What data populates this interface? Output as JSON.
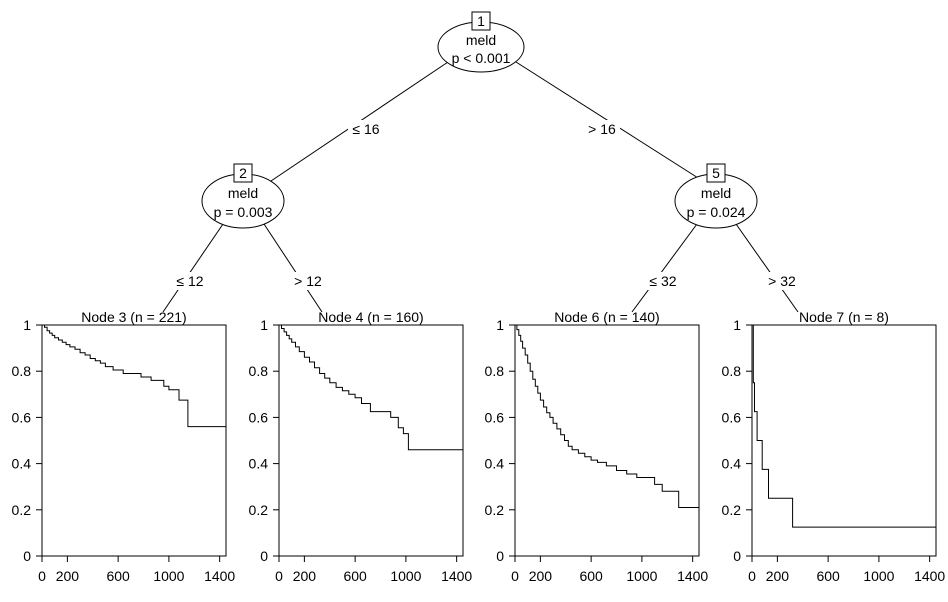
{
  "tree": {
    "inner_nodes": [
      {
        "id": "1",
        "variable": "meld",
        "pvalue": "p < 0.001"
      },
      {
        "id": "2",
        "variable": "meld",
        "pvalue": "p = 0.003"
      },
      {
        "id": "5",
        "variable": "meld",
        "pvalue": "p = 0.024"
      }
    ],
    "edges": [
      {
        "label": "≤ 16"
      },
      {
        "label": "> 16"
      },
      {
        "label": "≤ 12"
      },
      {
        "label": "> 12"
      },
      {
        "label": "≤ 32"
      },
      {
        "label": "> 32"
      }
    ]
  },
  "chart_data": [
    {
      "type": "line",
      "title": "Node 3 (n = 221)",
      "xlim": [
        0,
        1450
      ],
      "ylim": [
        0,
        1
      ],
      "x_ticks": [
        0,
        200,
        600,
        1000,
        1400
      ],
      "y_ticks": [
        0,
        0.2,
        0.4,
        0.6,
        0.8,
        1
      ],
      "x": [
        0,
        20,
        40,
        60,
        80,
        100,
        130,
        160,
        190,
        220,
        260,
        300,
        340,
        380,
        420,
        460,
        500,
        560,
        640,
        720,
        780,
        860,
        900,
        960,
        1000,
        1080,
        1150,
        1450
      ],
      "y": [
        1,
        0.99,
        0.975,
        0.965,
        0.955,
        0.945,
        0.935,
        0.925,
        0.915,
        0.905,
        0.895,
        0.88,
        0.87,
        0.855,
        0.845,
        0.835,
        0.82,
        0.805,
        0.79,
        0.79,
        0.775,
        0.76,
        0.76,
        0.735,
        0.72,
        0.675,
        0.56,
        0.56
      ]
    },
    {
      "type": "line",
      "title": "Node 4 (n = 160)",
      "xlim": [
        0,
        1450
      ],
      "ylim": [
        0,
        1
      ],
      "x_ticks": [
        0,
        200,
        600,
        1000,
        1400
      ],
      "y_ticks": [
        0,
        0.2,
        0.4,
        0.6,
        0.8,
        1
      ],
      "x": [
        0,
        20,
        40,
        60,
        80,
        100,
        130,
        160,
        200,
        240,
        280,
        320,
        360,
        400,
        450,
        500,
        550,
        600,
        650,
        720,
        800,
        880,
        940,
        980,
        1020,
        1450
      ],
      "y": [
        1,
        0.985,
        0.97,
        0.955,
        0.94,
        0.925,
        0.905,
        0.885,
        0.86,
        0.84,
        0.815,
        0.79,
        0.77,
        0.75,
        0.73,
        0.715,
        0.7,
        0.685,
        0.66,
        0.625,
        0.625,
        0.6,
        0.555,
        0.53,
        0.46,
        0.46
      ]
    },
    {
      "type": "line",
      "title": "Node 6 (n = 140)",
      "xlim": [
        0,
        1450
      ],
      "ylim": [
        0,
        1
      ],
      "x_ticks": [
        0,
        200,
        600,
        1000,
        1400
      ],
      "y_ticks": [
        0,
        0.2,
        0.4,
        0.6,
        0.8,
        1
      ],
      "x": [
        0,
        15,
        30,
        45,
        60,
        80,
        100,
        120,
        140,
        160,
        180,
        200,
        225,
        250,
        275,
        300,
        330,
        360,
        390,
        420,
        450,
        500,
        550,
        600,
        650,
        720,
        800,
        880,
        960,
        1040,
        1100,
        1160,
        1290,
        1450
      ],
      "y": [
        1,
        0.98,
        0.955,
        0.93,
        0.9,
        0.87,
        0.835,
        0.8,
        0.765,
        0.735,
        0.705,
        0.675,
        0.645,
        0.62,
        0.6,
        0.575,
        0.55,
        0.525,
        0.5,
        0.475,
        0.46,
        0.445,
        0.43,
        0.415,
        0.405,
        0.39,
        0.37,
        0.355,
        0.34,
        0.34,
        0.31,
        0.28,
        0.21,
        0.21
      ]
    },
    {
      "type": "line",
      "title": "Node 7 (n = 8)",
      "xlim": [
        0,
        1450
      ],
      "ylim": [
        0,
        1
      ],
      "x_ticks": [
        0,
        200,
        600,
        1000,
        1400
      ],
      "y_ticks": [
        0,
        0.2,
        0.4,
        0.6,
        0.8,
        1
      ],
      "x": [
        0,
        10,
        20,
        40,
        80,
        130,
        320,
        1450
      ],
      "y": [
        1,
        0.75,
        0.625,
        0.5,
        0.375,
        0.25,
        0.125,
        0.125
      ]
    }
  ]
}
